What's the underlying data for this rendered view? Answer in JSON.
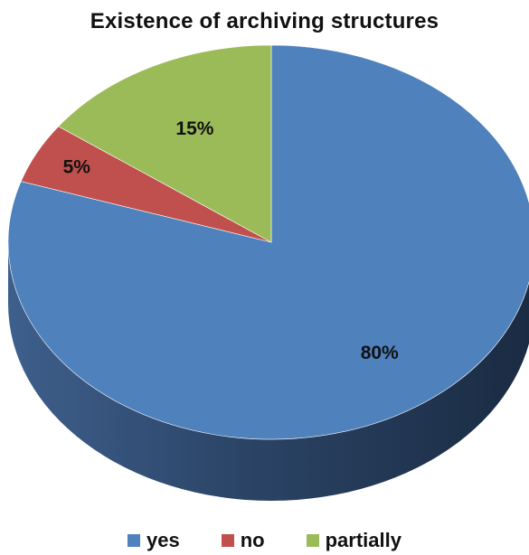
{
  "chart_data": {
    "type": "pie",
    "title": "Existence of archiving structures",
    "categories": [
      "yes",
      "no",
      "partially"
    ],
    "values": [
      80,
      5,
      15
    ],
    "data_labels": [
      "80%",
      "5%",
      "15%"
    ],
    "colors": [
      "#4F81BD",
      "#C0504D",
      "#9BBB59"
    ],
    "side_colors": [
      "#2E4A6E",
      "#7A2E2C",
      "#5E7336"
    ],
    "legend_position": "bottom",
    "style": "3d"
  }
}
